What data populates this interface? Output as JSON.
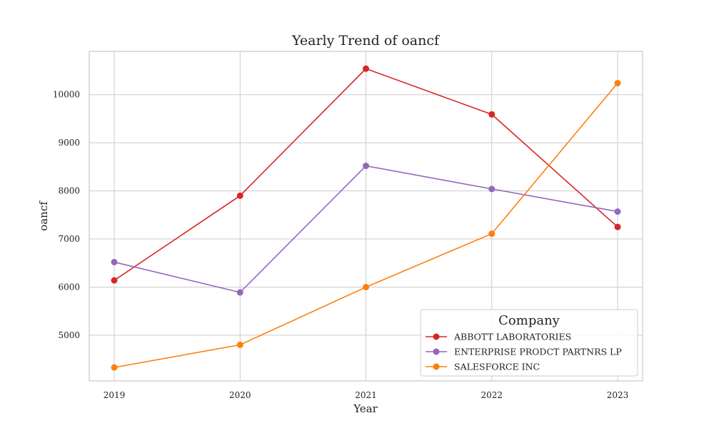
{
  "chart_data": {
    "type": "line",
    "title": "Yearly Trend of oancf",
    "xlabel": "Year",
    "ylabel": "oancf",
    "x": [
      2019,
      2020,
      2021,
      2022,
      2023
    ],
    "x_ticks": [
      "2019",
      "2020",
      "2021",
      "2022",
      "2023"
    ],
    "y_ticks": [
      5000,
      6000,
      7000,
      8000,
      9000,
      10000
    ],
    "ylim": [
      4050,
      10900
    ],
    "grid": true,
    "legend": {
      "title": "Company",
      "placement": "lower-right"
    },
    "series": [
      {
        "name": "ABBOTT LABORATORIES",
        "color": "#d62728",
        "values": [
          6140,
          7900,
          10540,
          9590,
          7250
        ]
      },
      {
        "name": "ENTERPRISE PRODCT PARTNRS LP",
        "color": "#9467bd",
        "values": [
          6520,
          5890,
          8520,
          8040,
          7570
        ]
      },
      {
        "name": "SALESFORCE INC",
        "color": "#ff7f0e",
        "values": [
          4330,
          4800,
          6000,
          7110,
          10240
        ]
      }
    ]
  }
}
